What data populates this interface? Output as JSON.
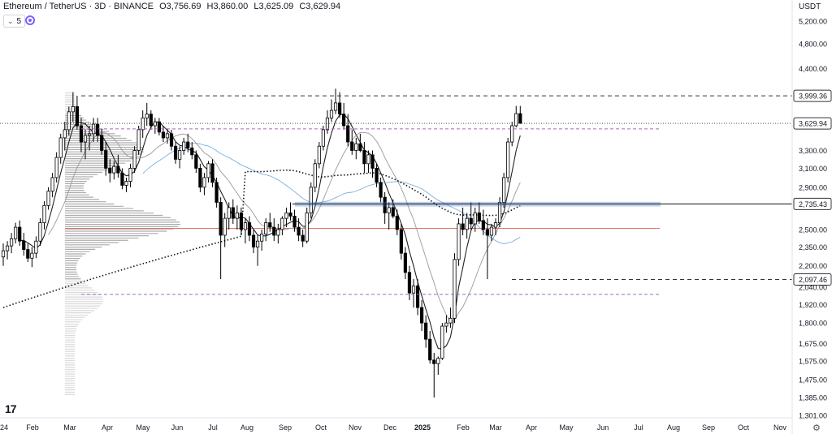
{
  "header": {
    "title": "Ethereum / TetherUS · 3D · BINANCE",
    "open": "O3,756.69",
    "high": "H3,860.00",
    "low": "L3,625.09",
    "close": "C3,629.94"
  },
  "indicator": {
    "toggle_label": "5",
    "chevron": "⌄",
    "icon": "indicator-circle-icon"
  },
  "axis": {
    "currency": "USDT"
  },
  "logo": {
    "text": "17",
    "icon": "tradingview-logo-icon"
  },
  "settings": {
    "icon": "gear-icon",
    "glyph": "⚙"
  },
  "colors": {
    "up": "#ffffff",
    "down": "#000000",
    "candle_outline": "#000000",
    "blue_line": "#5b9bd5",
    "poc_line": "#e57368",
    "level_band": "#4a7bd0",
    "purple_dash": "#9c6fb0"
  },
  "chart_data": {
    "type": "candlestick",
    "symbol": "Ethereum / TetherUS",
    "interval": "3D",
    "exchange": "BINANCE",
    "scale": "log",
    "ylim": [
      1290,
      5700
    ],
    "y_ticks": [
      "5,200.00",
      "4,800.00",
      "4,400.00",
      "3,999.36",
      "3,629.94",
      "3,300.00",
      "3,100.00",
      "2,900.00",
      "2,735.43",
      "2,500.00",
      "2,350.00",
      "2,200.00",
      "2,097.46",
      "2,040.00",
      "1,920.00",
      "1,800.00",
      "1,675.00",
      "1,575.00",
      "1,475.00",
      "1,385.00",
      "1,301.00"
    ],
    "x_ticks": [
      "24",
      "Feb",
      "Mar",
      "Apr",
      "May",
      "Jun",
      "Jul",
      "Aug",
      "Sep",
      "Oct",
      "Nov",
      "Dec",
      "2025",
      "Feb",
      "Mar",
      "Apr",
      "May",
      "Jun",
      "Jul",
      "Aug",
      "Sep",
      "Oct",
      "Nov"
    ],
    "price_labels": [
      {
        "value": "3,999.36",
        "style": "dashed-line"
      },
      {
        "value": "3,629.94",
        "style": "current-price"
      },
      {
        "value": "2,735.43",
        "style": "solid-line"
      },
      {
        "value": "2,097.46",
        "style": "dashed-line"
      }
    ],
    "candles": [
      [
        2270,
        2380,
        2200,
        2320
      ],
      [
        2320,
        2400,
        2250,
        2360
      ],
      [
        2360,
        2470,
        2300,
        2420
      ],
      [
        2420,
        2560,
        2380,
        2520
      ],
      [
        2520,
        2580,
        2360,
        2400
      ],
      [
        2400,
        2470,
        2280,
        2330
      ],
      [
        2330,
        2380,
        2230,
        2260
      ],
      [
        2260,
        2350,
        2190,
        2300
      ],
      [
        2300,
        2440,
        2260,
        2400
      ],
      [
        2400,
        2600,
        2360,
        2560
      ],
      [
        2560,
        2760,
        2500,
        2720
      ],
      [
        2720,
        2900,
        2680,
        2860
      ],
      [
        2860,
        3050,
        2800,
        3000
      ],
      [
        3000,
        3280,
        2950,
        3220
      ],
      [
        3220,
        3500,
        3150,
        3450
      ],
      [
        3450,
        3650,
        3300,
        3550
      ],
      [
        3550,
        3850,
        3480,
        3780
      ],
      [
        3780,
        4050,
        3650,
        3850
      ],
      [
        3850,
        4000,
        3550,
        3600
      ],
      [
        3600,
        3700,
        3280,
        3400
      ],
      [
        3400,
        3550,
        3200,
        3480
      ],
      [
        3480,
        3600,
        3300,
        3500
      ],
      [
        3500,
        3700,
        3400,
        3620
      ],
      [
        3620,
        3700,
        3400,
        3480
      ],
      [
        3480,
        3560,
        3250,
        3300
      ],
      [
        3300,
        3400,
        3020,
        3100
      ],
      [
        3100,
        3200,
        2950,
        3050
      ],
      [
        3050,
        3180,
        2980,
        3120
      ],
      [
        3120,
        3250,
        3000,
        3050
      ],
      [
        3050,
        3100,
        2880,
        2920
      ],
      [
        2920,
        3000,
        2850,
        2960
      ],
      [
        2960,
        3150,
        2900,
        3100
      ],
      [
        3100,
        3350,
        3050,
        3300
      ],
      [
        3300,
        3600,
        3250,
        3550
      ],
      [
        3550,
        3800,
        3450,
        3700
      ],
      [
        3700,
        3900,
        3600,
        3750
      ],
      [
        3750,
        3800,
        3550,
        3600
      ],
      [
        3600,
        3700,
        3500,
        3650
      ],
      [
        3650,
        3700,
        3480,
        3520
      ],
      [
        3520,
        3600,
        3400,
        3450
      ],
      [
        3450,
        3560,
        3380,
        3500
      ],
      [
        3500,
        3550,
        3300,
        3350
      ],
      [
        3350,
        3400,
        3150,
        3200
      ],
      [
        3200,
        3350,
        3100,
        3300
      ],
      [
        3300,
        3450,
        3250,
        3400
      ],
      [
        3400,
        3500,
        3280,
        3330
      ],
      [
        3330,
        3400,
        3200,
        3250
      ],
      [
        3250,
        3300,
        3050,
        3100
      ],
      [
        3100,
        3150,
        2850,
        2900
      ],
      [
        2900,
        3050,
        2820,
        3000
      ],
      [
        3000,
        3180,
        2950,
        3150
      ],
      [
        3150,
        3200,
        2900,
        2950
      ],
      [
        2950,
        3000,
        2700,
        2750
      ],
      [
        2750,
        2800,
        2100,
        2450
      ],
      [
        2450,
        2650,
        2350,
        2600
      ],
      [
        2600,
        2750,
        2500,
        2700
      ],
      [
        2700,
        2780,
        2550,
        2600
      ],
      [
        2600,
        2720,
        2500,
        2650
      ],
      [
        2650,
        2700,
        2450,
        2500
      ],
      [
        2500,
        2600,
        2380,
        2560
      ],
      [
        2560,
        2620,
        2400,
        2450
      ],
      [
        2450,
        2500,
        2300,
        2350
      ],
      [
        2350,
        2450,
        2200,
        2400
      ],
      [
        2400,
        2500,
        2320,
        2460
      ],
      [
        2460,
        2600,
        2400,
        2560
      ],
      [
        2560,
        2650,
        2480,
        2520
      ],
      [
        2520,
        2600,
        2400,
        2450
      ],
      [
        2450,
        2550,
        2380,
        2500
      ],
      [
        2500,
        2620,
        2450,
        2600
      ],
      [
        2600,
        2700,
        2520,
        2650
      ],
      [
        2650,
        2750,
        2580,
        2620
      ],
      [
        2620,
        2680,
        2480,
        2520
      ],
      [
        2520,
        2600,
        2400,
        2450
      ],
      [
        2450,
        2500,
        2350,
        2400
      ],
      [
        2400,
        2700,
        2380,
        2650
      ],
      [
        2650,
        2950,
        2600,
        2900
      ],
      [
        2900,
        3200,
        2850,
        3150
      ],
      [
        3150,
        3400,
        3100,
        3350
      ],
      [
        3350,
        3600,
        3300,
        3550
      ],
      [
        3550,
        3800,
        3500,
        3700
      ],
      [
        3700,
        3950,
        3650,
        3800
      ],
      [
        3800,
        4100,
        3750,
        3900
      ],
      [
        3900,
        4050,
        3700,
        3750
      ],
      [
        3750,
        3900,
        3550,
        3600
      ],
      [
        3600,
        3750,
        3350,
        3400
      ],
      [
        3400,
        3550,
        3250,
        3300
      ],
      [
        3300,
        3450,
        3200,
        3380
      ],
      [
        3380,
        3500,
        3280,
        3300
      ],
      [
        3300,
        3400,
        3050,
        3150
      ],
      [
        3150,
        3300,
        3050,
        3250
      ],
      [
        3250,
        3300,
        3000,
        3100
      ],
      [
        3100,
        3150,
        2900,
        2950
      ],
      [
        2950,
        3000,
        2750,
        2800
      ],
      [
        2800,
        2850,
        2550,
        2650
      ],
      [
        2650,
        2750,
        2500,
        2700
      ],
      [
        2700,
        2780,
        2600,
        2620
      ],
      [
        2620,
        2680,
        2450,
        2500
      ],
      [
        2500,
        2550,
        2250,
        2300
      ],
      [
        2300,
        2350,
        2100,
        2150
      ],
      [
        2150,
        2200,
        1950,
        2000
      ],
      [
        2000,
        2100,
        1900,
        2050
      ],
      [
        2050,
        2100,
        1850,
        1900
      ],
      [
        1900,
        1950,
        1750,
        1800
      ],
      [
        1800,
        1850,
        1650,
        1700
      ],
      [
        1700,
        1750,
        1560,
        1580
      ],
      [
        1580,
        1620,
        1385,
        1560
      ],
      [
        1560,
        1600,
        1500,
        1590
      ],
      [
        1590,
        1800,
        1580,
        1780
      ],
      [
        1780,
        1850,
        1740,
        1800
      ],
      [
        1800,
        1900,
        1770,
        1830
      ],
      [
        1830,
        2300,
        1800,
        2250
      ],
      [
        2250,
        2600,
        2200,
        2550
      ],
      [
        2550,
        2700,
        2450,
        2500
      ],
      [
        2500,
        2650,
        2420,
        2600
      ],
      [
        2600,
        2750,
        2500,
        2550
      ],
      [
        2550,
        2700,
        2480,
        2650
      ],
      [
        2650,
        2750,
        2550,
        2580
      ],
      [
        2580,
        2680,
        2450,
        2500
      ],
      [
        2500,
        2600,
        2100,
        2450
      ],
      [
        2450,
        2550,
        2400,
        2520
      ],
      [
        2520,
        2600,
        2450,
        2560
      ],
      [
        2560,
        2800,
        2520,
        2750
      ],
      [
        2750,
        3050,
        2700,
        3000
      ],
      [
        3000,
        3450,
        2950,
        3400
      ],
      [
        3400,
        3650,
        3350,
        3600
      ],
      [
        3600,
        3860,
        3580,
        3756.69
      ],
      [
        3756.69,
        3860,
        3625.09,
        3629.94
      ]
    ]
  }
}
